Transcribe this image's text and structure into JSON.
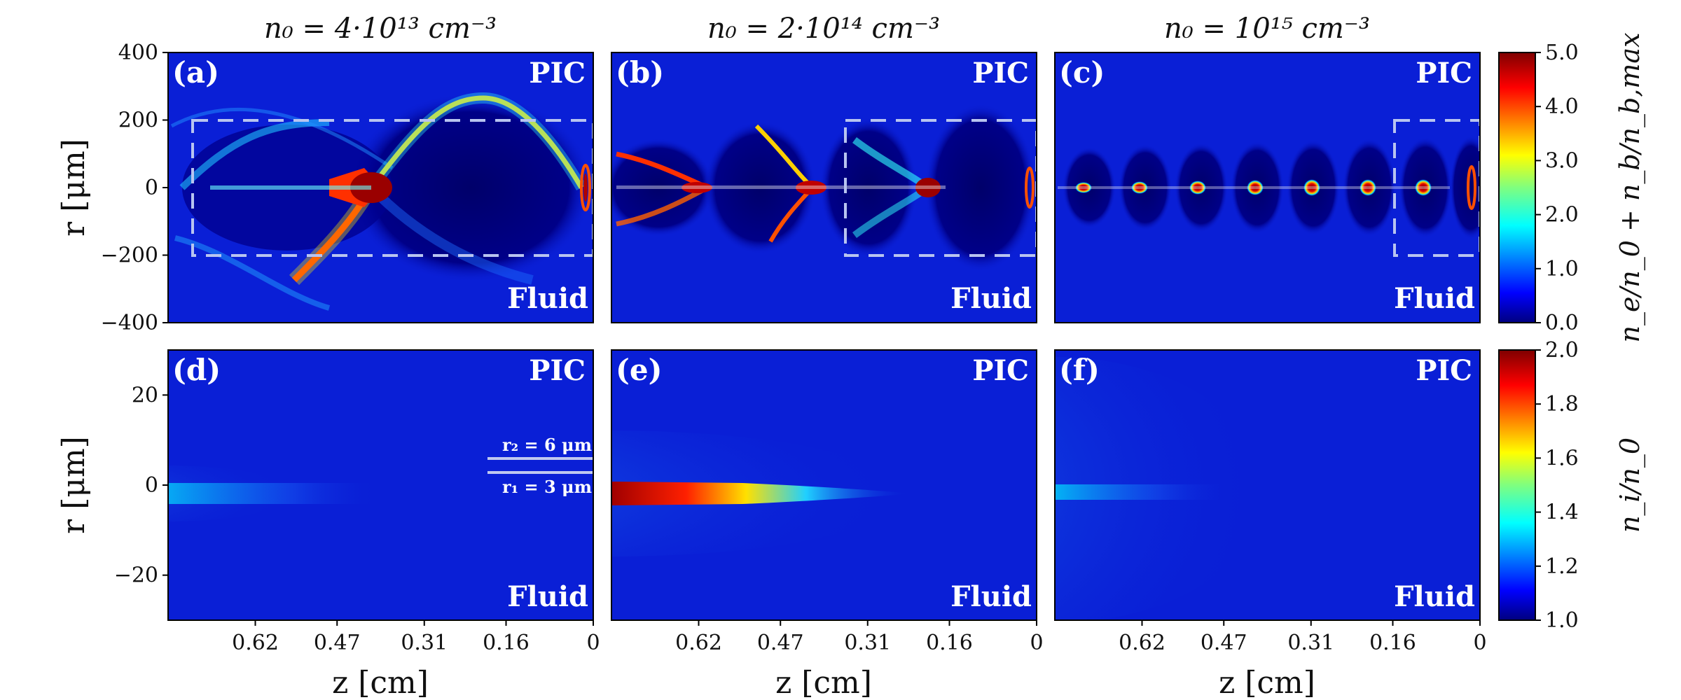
{
  "figure": {
    "column_titles": [
      "n₀ = 4·10¹³ cm⁻³",
      "n₀ = 2·10¹⁴ cm⁻³",
      "n₀ = 10¹⁵ cm⁻³"
    ],
    "panel_labels": [
      "(a)",
      "(b)",
      "(c)",
      "(d)",
      "(e)",
      "(f)"
    ],
    "top_label": "PIC",
    "bottom_label": "Fluid",
    "r2_label": "r₂ = 6 μm",
    "r1_label": "r₁ = 3 μm",
    "colors": {
      "background_blue": "#0a1fd6",
      "dark_blue": "#00006e",
      "box": "#b8c4f0"
    }
  },
  "chart_data": [
    {
      "type": "heatmap",
      "row": "top",
      "panels": [
        "(a)",
        "(b)",
        "(c)"
      ],
      "ylabel": "r [μm]",
      "ylim": [
        -400,
        400
      ],
      "yticks": [
        400,
        200,
        0,
        -200,
        -400
      ],
      "ytick_labels": [
        "400",
        "200",
        "0",
        "−200",
        "−400"
      ],
      "colorbar": {
        "label": "n_e/n_0 + n_b/n_b,max",
        "range": [
          0.0,
          5.0
        ],
        "ticks": [
          "5.0",
          "4.0",
          "3.0",
          "2.0",
          "1.0",
          "0.0"
        ]
      },
      "dashed_box_r": [
        -200,
        200
      ]
    },
    {
      "type": "heatmap",
      "row": "bottom",
      "panels": [
        "(d)",
        "(e)",
        "(f)"
      ],
      "xlabel": "z [cm]",
      "xticks": [
        0.62,
        0.47,
        0.31,
        0.16,
        0
      ],
      "xtick_labels": [
        "0.62",
        "0.47",
        "0.31",
        "0.16",
        "0"
      ],
      "ylabel": "r [μm]",
      "ylim": [
        -30,
        30
      ],
      "yticks": [
        20,
        0,
        -20
      ],
      "ytick_labels": [
        "20",
        "0",
        "−20"
      ],
      "colorbar": {
        "label": "n_i/n_0",
        "range": [
          1.0,
          2.0
        ],
        "ticks": [
          "2.0",
          "1.8",
          "1.6",
          "1.4",
          "1.2",
          "1.0"
        ]
      },
      "marked_radii_um": [
        6,
        3
      ]
    }
  ]
}
